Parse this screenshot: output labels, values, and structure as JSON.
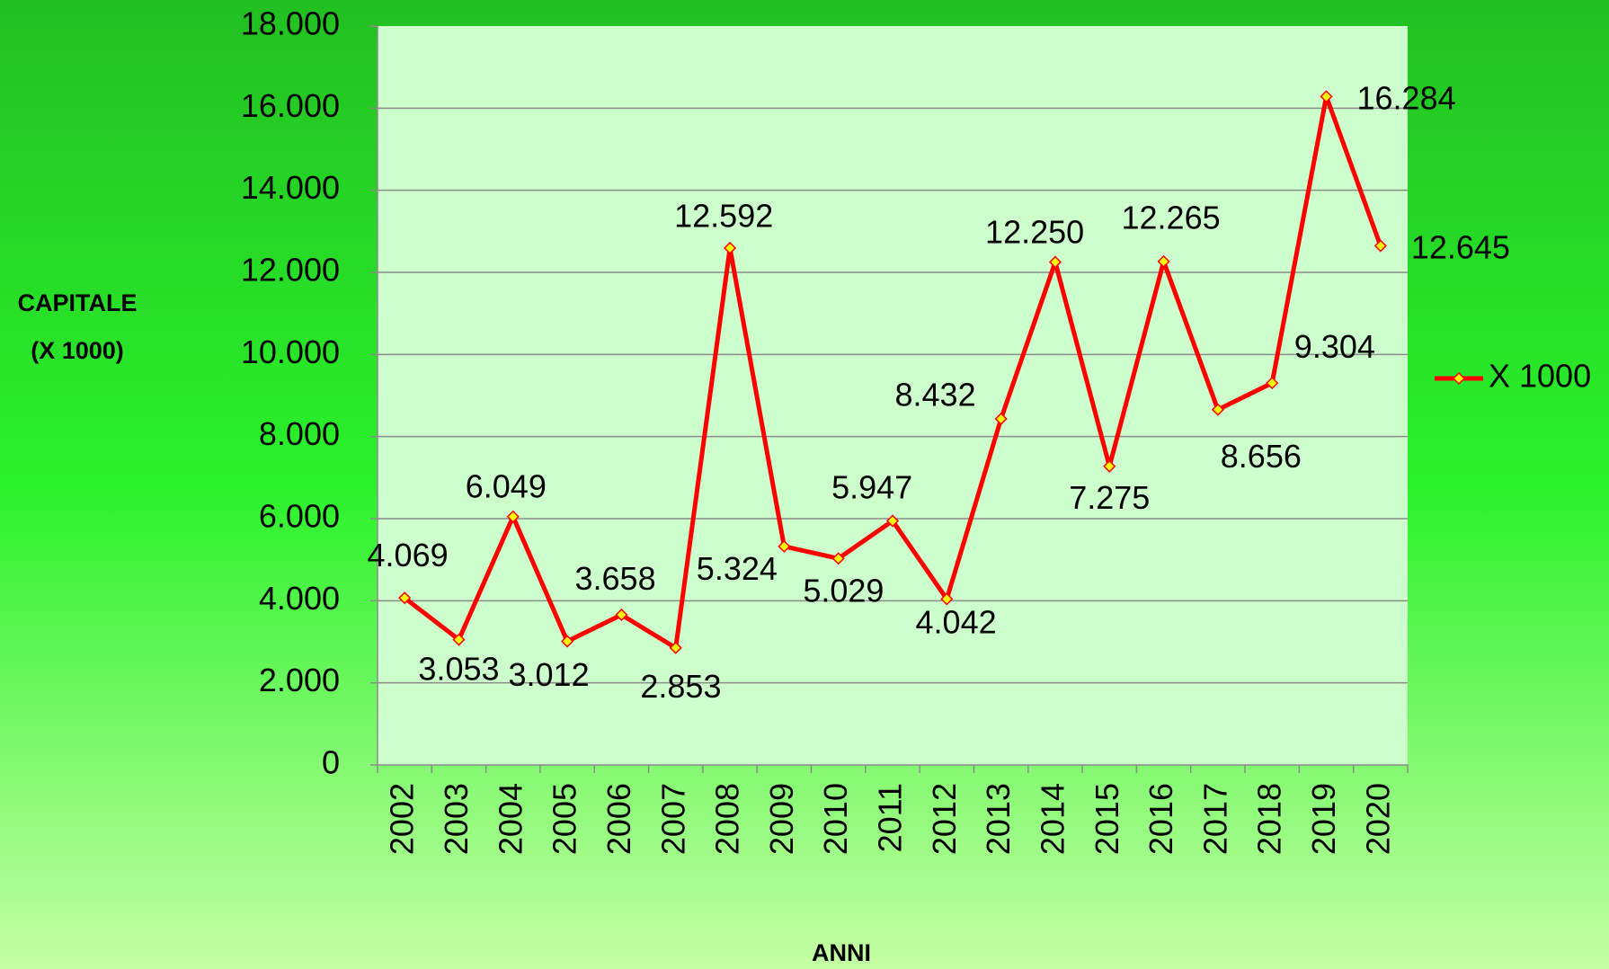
{
  "chart_data": {
    "type": "line",
    "y_label": [
      "CAPITALE",
      "(X 1000)"
    ],
    "x_label": "ANNI",
    "categories": [
      "2002",
      "2003",
      "2004",
      "2005",
      "2006",
      "2007",
      "2008",
      "2009",
      "2010",
      "2011",
      "2012",
      "2013",
      "2014",
      "2015",
      "2016",
      "2017",
      "2018",
      "2019",
      "2020"
    ],
    "series": [
      {
        "name": "X 1000",
        "color": "#ff0000",
        "marker_color": "#ffff00",
        "values": [
          4069,
          3053,
          6049,
          3012,
          3658,
          2853,
          12592,
          5324,
          5029,
          5947,
          4042,
          8432,
          12250,
          7275,
          12265,
          8656,
          9304,
          16284,
          12645
        ],
        "value_labels": [
          "4.069",
          "3.053",
          "6.049",
          "3.012",
          "3.658",
          "2.853",
          "12.592",
          "5.324",
          "5.029",
          "5.947",
          "4.042",
          "8.432",
          "12.250",
          "7.275",
          "12.265",
          "8.656",
          "9.304",
          "16.284",
          "12.645"
        ]
      }
    ],
    "ylim": [
      0,
      18000
    ],
    "yticks": [
      0,
      {
        "value": 2000,
        "label": "2.000"
      },
      {
        "value": 4000,
        "label": "4.000"
      },
      {
        "value": 6000,
        "label": "6.000"
      },
      {
        "value": 8000,
        "label": "8.000"
      },
      {
        "value": 10000,
        "label": "10.000"
      },
      {
        "value": 12000,
        "label": "12.000"
      },
      {
        "value": 14000,
        "label": "14.000"
      },
      {
        "value": 16000,
        "label": "16.000"
      },
      {
        "value": 18000,
        "label": "18.000"
      }
    ],
    "grid": true,
    "legend": "right"
  }
}
